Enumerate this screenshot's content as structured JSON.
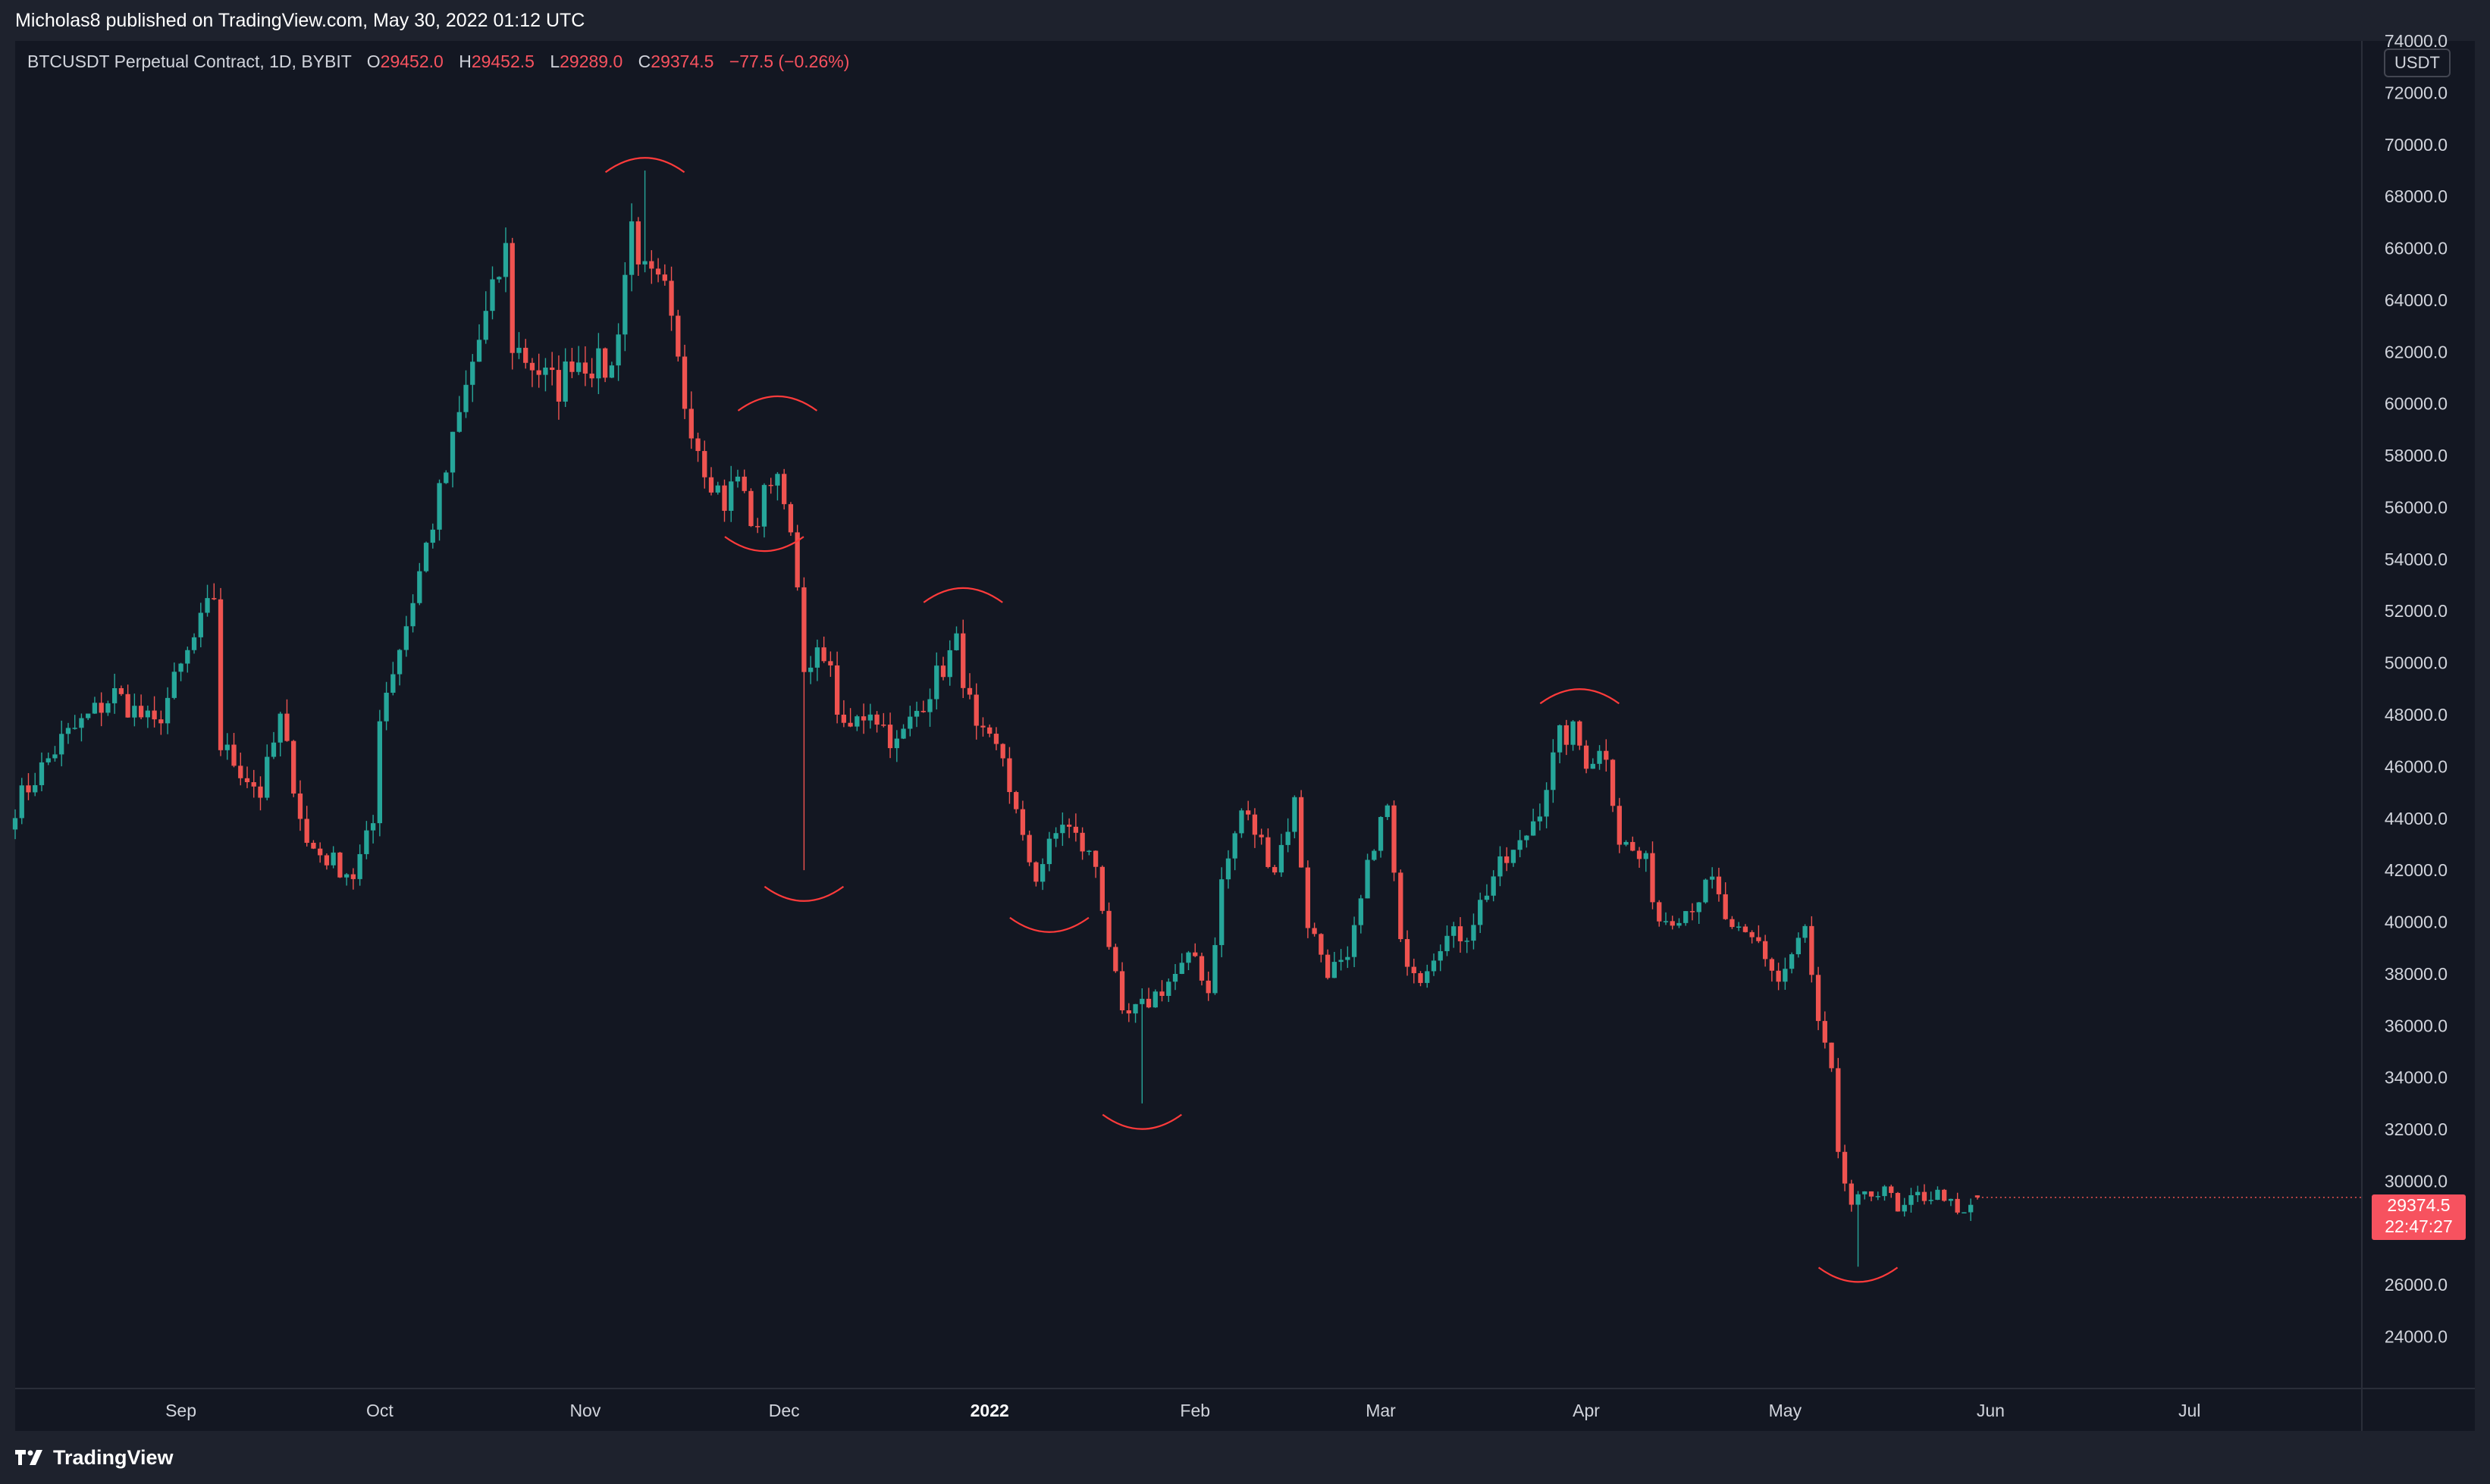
{
  "header": {
    "published_text": "Micholas8 published on TradingView.com, May 30, 2022 01:12 UTC"
  },
  "legend": {
    "symbol": "BTCUSDT Perpetual Contract, 1D, BYBIT",
    "o_label": "O",
    "o_value": "29452.0",
    "h_label": "H",
    "h_value": "29452.5",
    "l_label": "L",
    "l_value": "29289.0",
    "c_label": "C",
    "c_value": "29374.5",
    "change": "−77.5 (−0.26%)"
  },
  "currency_button": "USDT",
  "last_price": {
    "price": "29374.5",
    "countdown": "22:47:27"
  },
  "footer": {
    "brand": "TradingView"
  },
  "colors": {
    "up": "#26a69a",
    "down": "#ef5350",
    "background": "#131722",
    "annotation": "#ff3b3b"
  },
  "chart_data": {
    "type": "candlestick",
    "title": "BTCUSDT Perpetual Contract, 1D, BYBIT",
    "ylim": [
      22000,
      74000
    ],
    "xlim": [
      "2021-08-07",
      "2022-07-27"
    ],
    "y_ticks": [
      "24000.0",
      "26000.0",
      "28000.0",
      "30000.0",
      "32000.0",
      "34000.0",
      "36000.0",
      "38000.0",
      "40000.0",
      "42000.0",
      "44000.0",
      "46000.0",
      "48000.0",
      "50000.0",
      "52000.0",
      "54000.0",
      "56000.0",
      "58000.0",
      "60000.0",
      "62000.0",
      "64000.0",
      "66000.0",
      "68000.0",
      "70000.0",
      "72000.0",
      "74000.0"
    ],
    "x_ticks": [
      {
        "label": "Sep",
        "date": "2021-09-01"
      },
      {
        "label": "Oct",
        "date": "2021-10-01"
      },
      {
        "label": "Nov",
        "date": "2021-11-01"
      },
      {
        "label": "Dec",
        "date": "2021-12-01"
      },
      {
        "label": "2022",
        "date": "2022-01-01",
        "bold": true
      },
      {
        "label": "Feb",
        "date": "2022-02-01"
      },
      {
        "label": "Mar",
        "date": "2022-03-01"
      },
      {
        "label": "Apr",
        "date": "2022-04-01"
      },
      {
        "label": "May",
        "date": "2022-05-01"
      },
      {
        "label": "Jun",
        "date": "2022-06-01"
      },
      {
        "label": "Jul",
        "date": "2022-07-01"
      }
    ],
    "first_date": "2021-08-07",
    "close_path": [
      {
        "date": "2021-08-07",
        "close": 44500
      },
      {
        "date": "2021-08-14",
        "close": 47000
      },
      {
        "date": "2021-08-22",
        "close": 48800
      },
      {
        "date": "2021-08-28",
        "close": 47500
      },
      {
        "date": "2021-09-06",
        "close": 52600
      },
      {
        "date": "2021-09-07",
        "close": 46800
      },
      {
        "date": "2021-09-13",
        "close": 45000
      },
      {
        "date": "2021-09-16",
        "close": 47800
      },
      {
        "date": "2021-09-20",
        "close": 43000
      },
      {
        "date": "2021-09-24",
        "close": 42300
      },
      {
        "date": "2021-09-27",
        "close": 41800
      },
      {
        "date": "2021-09-30",
        "close": 43800
      },
      {
        "date": "2021-10-01",
        "close": 48100
      },
      {
        "date": "2021-10-05",
        "close": 51500
      },
      {
        "date": "2021-10-08",
        "close": 54500
      },
      {
        "date": "2021-10-11",
        "close": 57400
      },
      {
        "date": "2021-10-15",
        "close": 61600
      },
      {
        "date": "2021-10-20",
        "close": 65900
      },
      {
        "date": "2021-10-21",
        "close": 62300
      },
      {
        "date": "2021-10-26",
        "close": 61000
      },
      {
        "date": "2021-10-28",
        "close": 60600
      },
      {
        "date": "2021-10-30",
        "close": 61800
      },
      {
        "date": "2021-11-05",
        "close": 61300
      },
      {
        "date": "2021-11-08",
        "close": 66900
      },
      {
        "date": "2021-11-10",
        "close": 64900
      },
      {
        "date": "2021-11-13",
        "close": 64200
      },
      {
        "date": "2021-11-16",
        "close": 60100
      },
      {
        "date": "2021-11-19",
        "close": 57700
      },
      {
        "date": "2021-11-22",
        "close": 56200
      },
      {
        "date": "2021-11-24",
        "close": 57200
      },
      {
        "date": "2021-11-27",
        "close": 54800
      },
      {
        "date": "2021-11-28",
        "close": 57200
      },
      {
        "date": "2021-12-01",
        "close": 56600
      },
      {
        "date": "2021-12-03",
        "close": 53500
      },
      {
        "date": "2021-12-04",
        "close": 49200
      },
      {
        "date": "2021-12-07",
        "close": 50600
      },
      {
        "date": "2021-12-10",
        "close": 47200
      },
      {
        "date": "2021-12-14",
        "close": 48300
      },
      {
        "date": "2021-12-18",
        "close": 46800
      },
      {
        "date": "2021-12-22",
        "close": 48600
      },
      {
        "date": "2021-12-27",
        "close": 50700
      },
      {
        "date": "2021-12-30",
        "close": 47200
      },
      {
        "date": "2022-01-03",
        "close": 46400
      },
      {
        "date": "2022-01-06",
        "close": 43000
      },
      {
        "date": "2022-01-08",
        "close": 41800
      },
      {
        "date": "2022-01-12",
        "close": 43900
      },
      {
        "date": "2022-01-17",
        "close": 42200
      },
      {
        "date": "2022-01-21",
        "close": 36200
      },
      {
        "date": "2022-01-24",
        "close": 36700
      },
      {
        "date": "2022-01-28",
        "close": 37700
      },
      {
        "date": "2022-02-01",
        "close": 38700
      },
      {
        "date": "2022-02-03",
        "close": 37300
      },
      {
        "date": "2022-02-05",
        "close": 41500
      },
      {
        "date": "2022-02-08",
        "close": 44300
      },
      {
        "date": "2022-02-10",
        "close": 43500
      },
      {
        "date": "2022-02-13",
        "close": 42100
      },
      {
        "date": "2022-02-16",
        "close": 44600
      },
      {
        "date": "2022-02-18",
        "close": 40000
      },
      {
        "date": "2022-02-21",
        "close": 38200
      },
      {
        "date": "2022-02-24",
        "close": 38300
      },
      {
        "date": "2022-02-28",
        "close": 43200
      },
      {
        "date": "2022-03-02",
        "close": 44400
      },
      {
        "date": "2022-03-04",
        "close": 39000
      },
      {
        "date": "2022-03-07",
        "close": 38000
      },
      {
        "date": "2022-03-10",
        "close": 39300
      },
      {
        "date": "2022-03-14",
        "close": 39600
      },
      {
        "date": "2022-03-18",
        "close": 41800
      },
      {
        "date": "2022-03-22",
        "close": 42900
      },
      {
        "date": "2022-03-25",
        "close": 44500
      },
      {
        "date": "2022-03-28",
        "close": 47100
      },
      {
        "date": "2022-03-30",
        "close": 47300
      },
      {
        "date": "2022-04-01",
        "close": 46300
      },
      {
        "date": "2022-04-04",
        "close": 46600
      },
      {
        "date": "2022-04-06",
        "close": 43200
      },
      {
        "date": "2022-04-10",
        "close": 42200
      },
      {
        "date": "2022-04-12",
        "close": 40100
      },
      {
        "date": "2022-04-16",
        "close": 40500
      },
      {
        "date": "2022-04-20",
        "close": 41500
      },
      {
        "date": "2022-04-23",
        "close": 39500
      },
      {
        "date": "2022-04-27",
        "close": 39200
      },
      {
        "date": "2022-04-30",
        "close": 37700
      },
      {
        "date": "2022-05-04",
        "close": 39700
      },
      {
        "date": "2022-05-06",
        "close": 36000
      },
      {
        "date": "2022-05-08",
        "close": 34100
      },
      {
        "date": "2022-05-09",
        "close": 30800
      },
      {
        "date": "2022-05-11",
        "close": 29100
      },
      {
        "date": "2022-05-13",
        "close": 29300
      },
      {
        "date": "2022-05-16",
        "close": 29900
      },
      {
        "date": "2022-05-18",
        "close": 28700
      },
      {
        "date": "2022-05-21",
        "close": 29400
      },
      {
        "date": "2022-05-25",
        "close": 29500
      },
      {
        "date": "2022-05-27",
        "close": 28600
      },
      {
        "date": "2022-05-28",
        "close": 28800
      },
      {
        "date": "2022-05-30",
        "close": 29374.5
      }
    ],
    "wick_extremes": [
      {
        "date": "2021-11-10",
        "high": 69000
      },
      {
        "date": "2021-12-04",
        "low": 42000
      },
      {
        "date": "2022-01-24",
        "low": 33000
      },
      {
        "date": "2022-05-12",
        "low": 26700
      }
    ],
    "last_candle": {
      "open": 29452.0,
      "high": 29452.5,
      "low": 29289.0,
      "close": 29374.5
    },
    "annotations": [
      {
        "type": "arc-top",
        "date": "2021-11-10",
        "price": 69400
      },
      {
        "type": "arc-bottom",
        "date": "2021-11-28",
        "price": 54400
      },
      {
        "type": "arc-top",
        "date": "2021-11-30",
        "price": 60200
      },
      {
        "type": "arc-bottom",
        "date": "2021-12-04",
        "price": 40900
      },
      {
        "type": "arc-top",
        "date": "2021-12-28",
        "price": 52800
      },
      {
        "type": "arc-bottom",
        "date": "2022-01-10",
        "price": 39700
      },
      {
        "type": "arc-bottom",
        "date": "2022-01-24",
        "price": 32100
      },
      {
        "type": "arc-top",
        "date": "2022-03-31",
        "price": 48900
      },
      {
        "type": "arc-bottom",
        "date": "2022-05-12",
        "price": 26200
      }
    ]
  }
}
